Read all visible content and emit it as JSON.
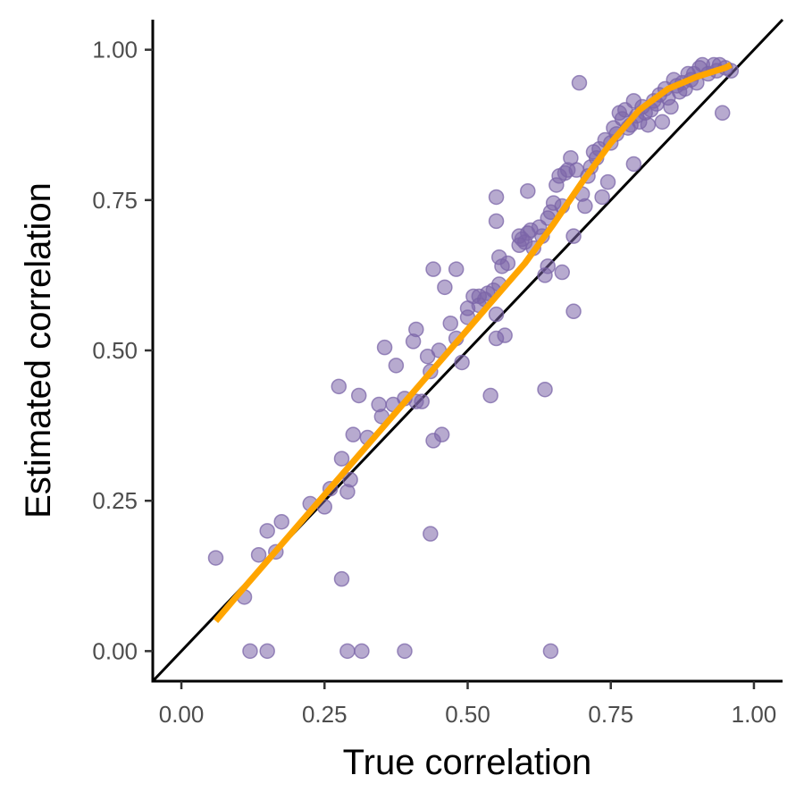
{
  "chart_data": {
    "type": "scatter",
    "title": "",
    "xlabel": "True correlation",
    "ylabel": "Estimated correlation",
    "xlim": [
      -0.05,
      1.05
    ],
    "ylim": [
      -0.05,
      1.05
    ],
    "x_ticks": [
      0,
      0.25,
      0.5,
      0.75,
      1
    ],
    "x_tick_labels": [
      "0.00",
      "0.25",
      "0.50",
      "0.75",
      "1.00"
    ],
    "y_ticks": [
      0,
      0.25,
      0.5,
      0.75,
      1
    ],
    "y_tick_labels": [
      "0.00",
      "0.25",
      "0.50",
      "0.75",
      "1.00"
    ],
    "grid": false,
    "legend": "none",
    "colors": {
      "points": "#7b65a8",
      "smooth": "#ffa500",
      "identity": "#000000",
      "axis": "#000000"
    },
    "identity_line": {
      "intercept": 0,
      "slope": 1
    },
    "points": [
      [
        0.06,
        0.155
      ],
      [
        0.11,
        0.09
      ],
      [
        0.12,
        0.0
      ],
      [
        0.135,
        0.16
      ],
      [
        0.15,
        0.0
      ],
      [
        0.15,
        0.2
      ],
      [
        0.165,
        0.165
      ],
      [
        0.175,
        0.215
      ],
      [
        0.225,
        0.245
      ],
      [
        0.25,
        0.24
      ],
      [
        0.26,
        0.27
      ],
      [
        0.275,
        0.44
      ],
      [
        0.28,
        0.32
      ],
      [
        0.28,
        0.12
      ],
      [
        0.29,
        0.265
      ],
      [
        0.29,
        0.0
      ],
      [
        0.295,
        0.285
      ],
      [
        0.3,
        0.36
      ],
      [
        0.31,
        0.425
      ],
      [
        0.315,
        0.0
      ],
      [
        0.325,
        0.355
      ],
      [
        0.345,
        0.41
      ],
      [
        0.35,
        0.39
      ],
      [
        0.355,
        0.505
      ],
      [
        0.37,
        0.41
      ],
      [
        0.375,
        0.475
      ],
      [
        0.39,
        0.42
      ],
      [
        0.39,
        0.0
      ],
      [
        0.405,
        0.515
      ],
      [
        0.41,
        0.535
      ],
      [
        0.41,
        0.415
      ],
      [
        0.42,
        0.415
      ],
      [
        0.43,
        0.49
      ],
      [
        0.435,
        0.465
      ],
      [
        0.435,
        0.195
      ],
      [
        0.44,
        0.35
      ],
      [
        0.44,
        0.635
      ],
      [
        0.45,
        0.5
      ],
      [
        0.455,
        0.36
      ],
      [
        0.46,
        0.605
      ],
      [
        0.47,
        0.545
      ],
      [
        0.48,
        0.635
      ],
      [
        0.48,
        0.52
      ],
      [
        0.49,
        0.48
      ],
      [
        0.5,
        0.57
      ],
      [
        0.5,
        0.555
      ],
      [
        0.51,
        0.59
      ],
      [
        0.52,
        0.575
      ],
      [
        0.52,
        0.59
      ],
      [
        0.53,
        0.585
      ],
      [
        0.535,
        0.595
      ],
      [
        0.54,
        0.425
      ],
      [
        0.545,
        0.6
      ],
      [
        0.55,
        0.56
      ],
      [
        0.55,
        0.52
      ],
      [
        0.55,
        0.755
      ],
      [
        0.55,
        0.715
      ],
      [
        0.555,
        0.61
      ],
      [
        0.555,
        0.655
      ],
      [
        0.56,
        0.64
      ],
      [
        0.565,
        0.525
      ],
      [
        0.57,
        0.645
      ],
      [
        0.59,
        0.675
      ],
      [
        0.59,
        0.69
      ],
      [
        0.595,
        0.685
      ],
      [
        0.6,
        0.68
      ],
      [
        0.605,
        0.695
      ],
      [
        0.605,
        0.765
      ],
      [
        0.61,
        0.7
      ],
      [
        0.615,
        0.67
      ],
      [
        0.625,
        0.705
      ],
      [
        0.63,
        0.69
      ],
      [
        0.635,
        0.435
      ],
      [
        0.635,
        0.625
      ],
      [
        0.64,
        0.72
      ],
      [
        0.64,
        0.64
      ],
      [
        0.645,
        0.73
      ],
      [
        0.645,
        0.0
      ],
      [
        0.65,
        0.745
      ],
      [
        0.655,
        0.775
      ],
      [
        0.66,
        0.79
      ],
      [
        0.665,
        0.74
      ],
      [
        0.665,
        0.63
      ],
      [
        0.67,
        0.795
      ],
      [
        0.675,
        0.8
      ],
      [
        0.68,
        0.82
      ],
      [
        0.685,
        0.565
      ],
      [
        0.685,
        0.69
      ],
      [
        0.69,
        0.8
      ],
      [
        0.695,
        0.945
      ],
      [
        0.7,
        0.76
      ],
      [
        0.705,
        0.74
      ],
      [
        0.71,
        0.79
      ],
      [
        0.715,
        0.805
      ],
      [
        0.72,
        0.83
      ],
      [
        0.725,
        0.82
      ],
      [
        0.73,
        0.835
      ],
      [
        0.735,
        0.755
      ],
      [
        0.74,
        0.85
      ],
      [
        0.745,
        0.78
      ],
      [
        0.75,
        0.845
      ],
      [
        0.755,
        0.87
      ],
      [
        0.76,
        0.86
      ],
      [
        0.765,
        0.895
      ],
      [
        0.77,
        0.885
      ],
      [
        0.775,
        0.9
      ],
      [
        0.78,
        0.87
      ],
      [
        0.785,
        0.875
      ],
      [
        0.79,
        0.915
      ],
      [
        0.79,
        0.81
      ],
      [
        0.795,
        0.89
      ],
      [
        0.8,
        0.88
      ],
      [
        0.805,
        0.905
      ],
      [
        0.81,
        0.895
      ],
      [
        0.815,
        0.875
      ],
      [
        0.82,
        0.9
      ],
      [
        0.825,
        0.915
      ],
      [
        0.83,
        0.91
      ],
      [
        0.835,
        0.925
      ],
      [
        0.84,
        0.88
      ],
      [
        0.845,
        0.935
      ],
      [
        0.85,
        0.92
      ],
      [
        0.855,
        0.905
      ],
      [
        0.86,
        0.95
      ],
      [
        0.865,
        0.94
      ],
      [
        0.87,
        0.93
      ],
      [
        0.875,
        0.945
      ],
      [
        0.88,
        0.935
      ],
      [
        0.885,
        0.96
      ],
      [
        0.89,
        0.95
      ],
      [
        0.895,
        0.96
      ],
      [
        0.9,
        0.945
      ],
      [
        0.905,
        0.97
      ],
      [
        0.91,
        0.975
      ],
      [
        0.92,
        0.96
      ],
      [
        0.93,
        0.975
      ],
      [
        0.935,
        0.965
      ],
      [
        0.94,
        0.975
      ],
      [
        0.945,
        0.895
      ],
      [
        0.95,
        0.97
      ],
      [
        0.96,
        0.965
      ]
    ],
    "smooth_line": [
      [
        0.06,
        0.05
      ],
      [
        0.1,
        0.095
      ],
      [
        0.15,
        0.15
      ],
      [
        0.2,
        0.205
      ],
      [
        0.25,
        0.26
      ],
      [
        0.3,
        0.315
      ],
      [
        0.35,
        0.37
      ],
      [
        0.4,
        0.425
      ],
      [
        0.45,
        0.48
      ],
      [
        0.5,
        0.535
      ],
      [
        0.55,
        0.59
      ],
      [
        0.6,
        0.645
      ],
      [
        0.65,
        0.71
      ],
      [
        0.7,
        0.78
      ],
      [
        0.75,
        0.845
      ],
      [
        0.8,
        0.9
      ],
      [
        0.85,
        0.935
      ],
      [
        0.9,
        0.955
      ],
      [
        0.95,
        0.97
      ],
      [
        0.96,
        0.975
      ]
    ]
  }
}
